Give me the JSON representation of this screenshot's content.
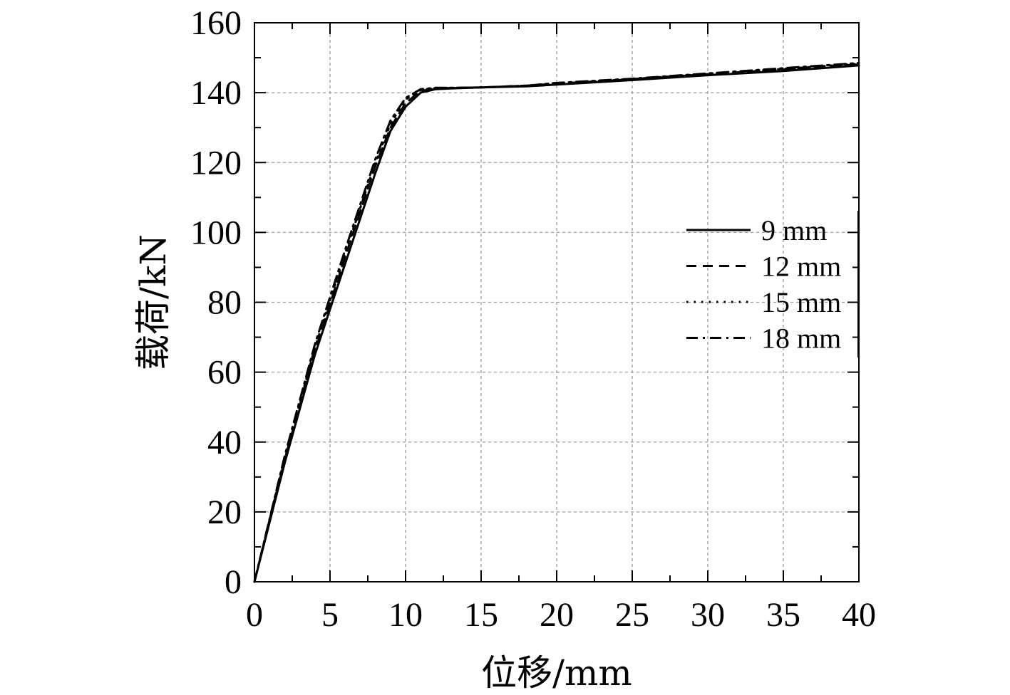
{
  "chart_data": {
    "type": "line",
    "title": "",
    "xlabel": "位移/mm",
    "ylabel": "载荷/kN",
    "xlim": [
      0,
      40
    ],
    "ylim": [
      0,
      160
    ],
    "xticks": [
      0,
      5,
      10,
      15,
      20,
      25,
      30,
      35,
      40
    ],
    "yticks": [
      0,
      20,
      40,
      60,
      80,
      100,
      120,
      140,
      160
    ],
    "grid": true,
    "legend_position": "right",
    "series": [
      {
        "name": "9 mm",
        "style": "solid",
        "x": [
          0,
          2,
          4,
          6,
          8,
          9,
          10,
          11,
          12,
          13,
          15,
          18,
          20,
          25,
          30,
          35,
          40
        ],
        "y": [
          0,
          34,
          65,
          91,
          117,
          129,
          136,
          140,
          141,
          141.2,
          141.5,
          141.8,
          142.3,
          143.6,
          145,
          146.2,
          147.8
        ]
      },
      {
        "name": "12 mm",
        "style": "dashed",
        "x": [
          0,
          2,
          4,
          6,
          8,
          9,
          10,
          11,
          12,
          13,
          15,
          18,
          20,
          25,
          30,
          35,
          40
        ],
        "y": [
          0,
          35,
          66,
          93,
          119,
          130,
          137,
          140.5,
          141.2,
          141.3,
          141.5,
          142,
          142.6,
          143.8,
          145.3,
          146.6,
          148.1
        ]
      },
      {
        "name": "15 mm",
        "style": "dotted",
        "x": [
          0,
          2,
          4,
          6,
          8,
          9,
          10,
          11,
          12,
          13,
          15,
          18,
          20,
          25,
          30,
          35,
          40
        ],
        "y": [
          0,
          35.5,
          67,
          94,
          120,
          131,
          138,
          140.8,
          141.3,
          141.4,
          141.5,
          142,
          142.7,
          143.9,
          145.4,
          146.8,
          148.3
        ]
      },
      {
        "name": "18 mm",
        "style": "dashdot",
        "x": [
          0,
          2,
          4,
          6,
          8,
          9,
          10,
          11,
          12,
          13,
          15,
          18,
          20,
          25,
          30,
          35,
          40
        ],
        "y": [
          0,
          36,
          68,
          95,
          121,
          132,
          138.5,
          141,
          141.4,
          141.4,
          141.5,
          142,
          142.8,
          144,
          145.5,
          147,
          148.5
        ]
      }
    ]
  }
}
